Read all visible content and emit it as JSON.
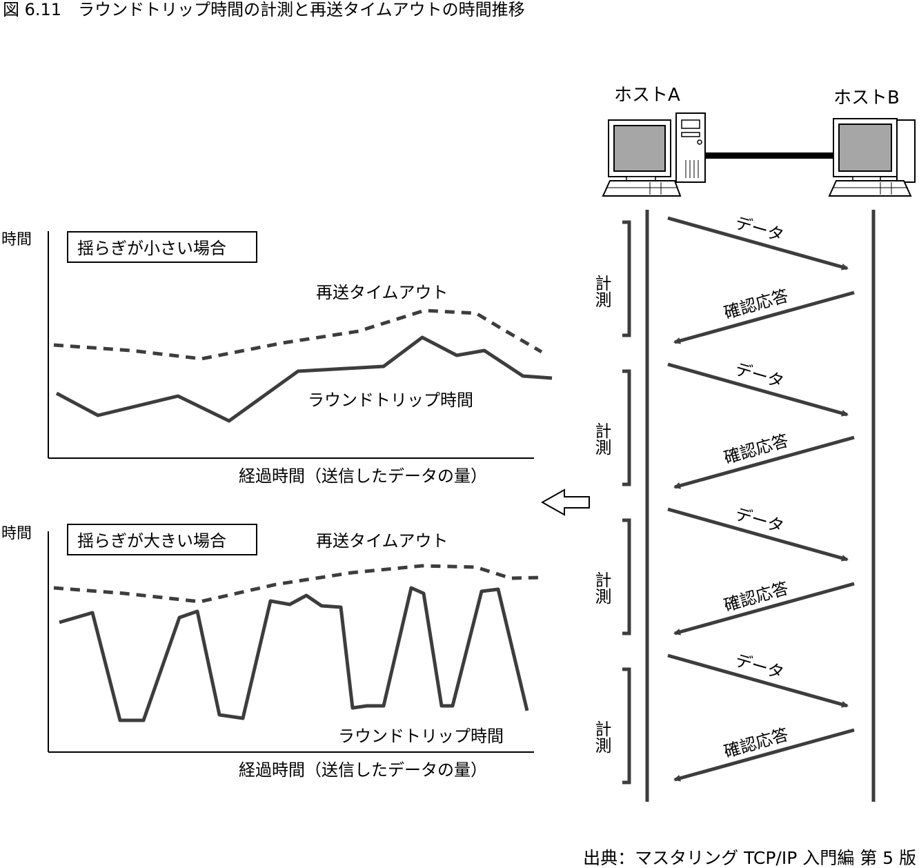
{
  "figure": {
    "title": "図 6.11　ラウンドトリップ時間の計測と再送タイムアウトの時間推移",
    "source": "出典：マスタリング TCP/IP 入門編 第 5 版"
  },
  "charts": {
    "small": {
      "y_label": "時間",
      "box_label": "揺らぎが小さい場合",
      "rto_label": "再送タイムアウト",
      "rtt_label": "ラウンドトリップ時間",
      "x_label": "経過時間（送信したデータの量）"
    },
    "large": {
      "y_label": "時間",
      "box_label": "揺らぎが大きい場合",
      "rto_label": "再送タイムアウト",
      "rtt_label": "ラウンドトリップ時間",
      "x_label": "経過時間（送信したデータの量）"
    }
  },
  "hosts": {
    "a_label": "ホストA",
    "b_label": "ホストB"
  },
  "sequence": {
    "exchanges": [
      {
        "data_label": "データ",
        "ack_label": "確認応答",
        "measure_label": "計測"
      },
      {
        "data_label": "データ",
        "ack_label": "確認応答",
        "measure_label": "計測"
      },
      {
        "data_label": "データ",
        "ack_label": "確認応答",
        "measure_label": "計測"
      },
      {
        "data_label": "データ",
        "ack_label": "確認応答",
        "measure_label": "計測"
      }
    ]
  },
  "colors": {
    "line": "#3d3d3d",
    "axis": "#000000",
    "screen": "#a6a6a6",
    "case": "#ffffff"
  }
}
